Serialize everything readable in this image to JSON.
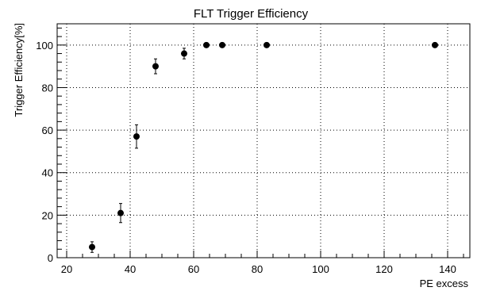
{
  "chart_data": {
    "type": "scatter",
    "title": "FLT Trigger Efficiency",
    "xlabel": "PE excess",
    "ylabel": "Trigger Efficiency[%]",
    "xlim": [
      17,
      147
    ],
    "ylim": [
      0,
      110
    ],
    "x_ticks": [
      20,
      40,
      60,
      80,
      100,
      120,
      140
    ],
    "y_ticks": [
      0,
      20,
      40,
      60,
      80,
      100
    ],
    "grid": true,
    "series": [
      {
        "points": [
          {
            "x": 28,
            "y": 5,
            "err": 2.5
          },
          {
            "x": 37,
            "y": 21,
            "err": 4.5
          },
          {
            "x": 42,
            "y": 57,
            "err": 5.5
          },
          {
            "x": 48,
            "y": 90,
            "err": 3.5
          },
          {
            "x": 57,
            "y": 96,
            "err": 2.5
          },
          {
            "x": 64,
            "y": 100,
            "err": 0
          },
          {
            "x": 69,
            "y": 100,
            "err": 0
          },
          {
            "x": 83,
            "y": 100,
            "err": 0
          },
          {
            "x": 136,
            "y": 100,
            "err": 0
          }
        ]
      }
    ]
  }
}
